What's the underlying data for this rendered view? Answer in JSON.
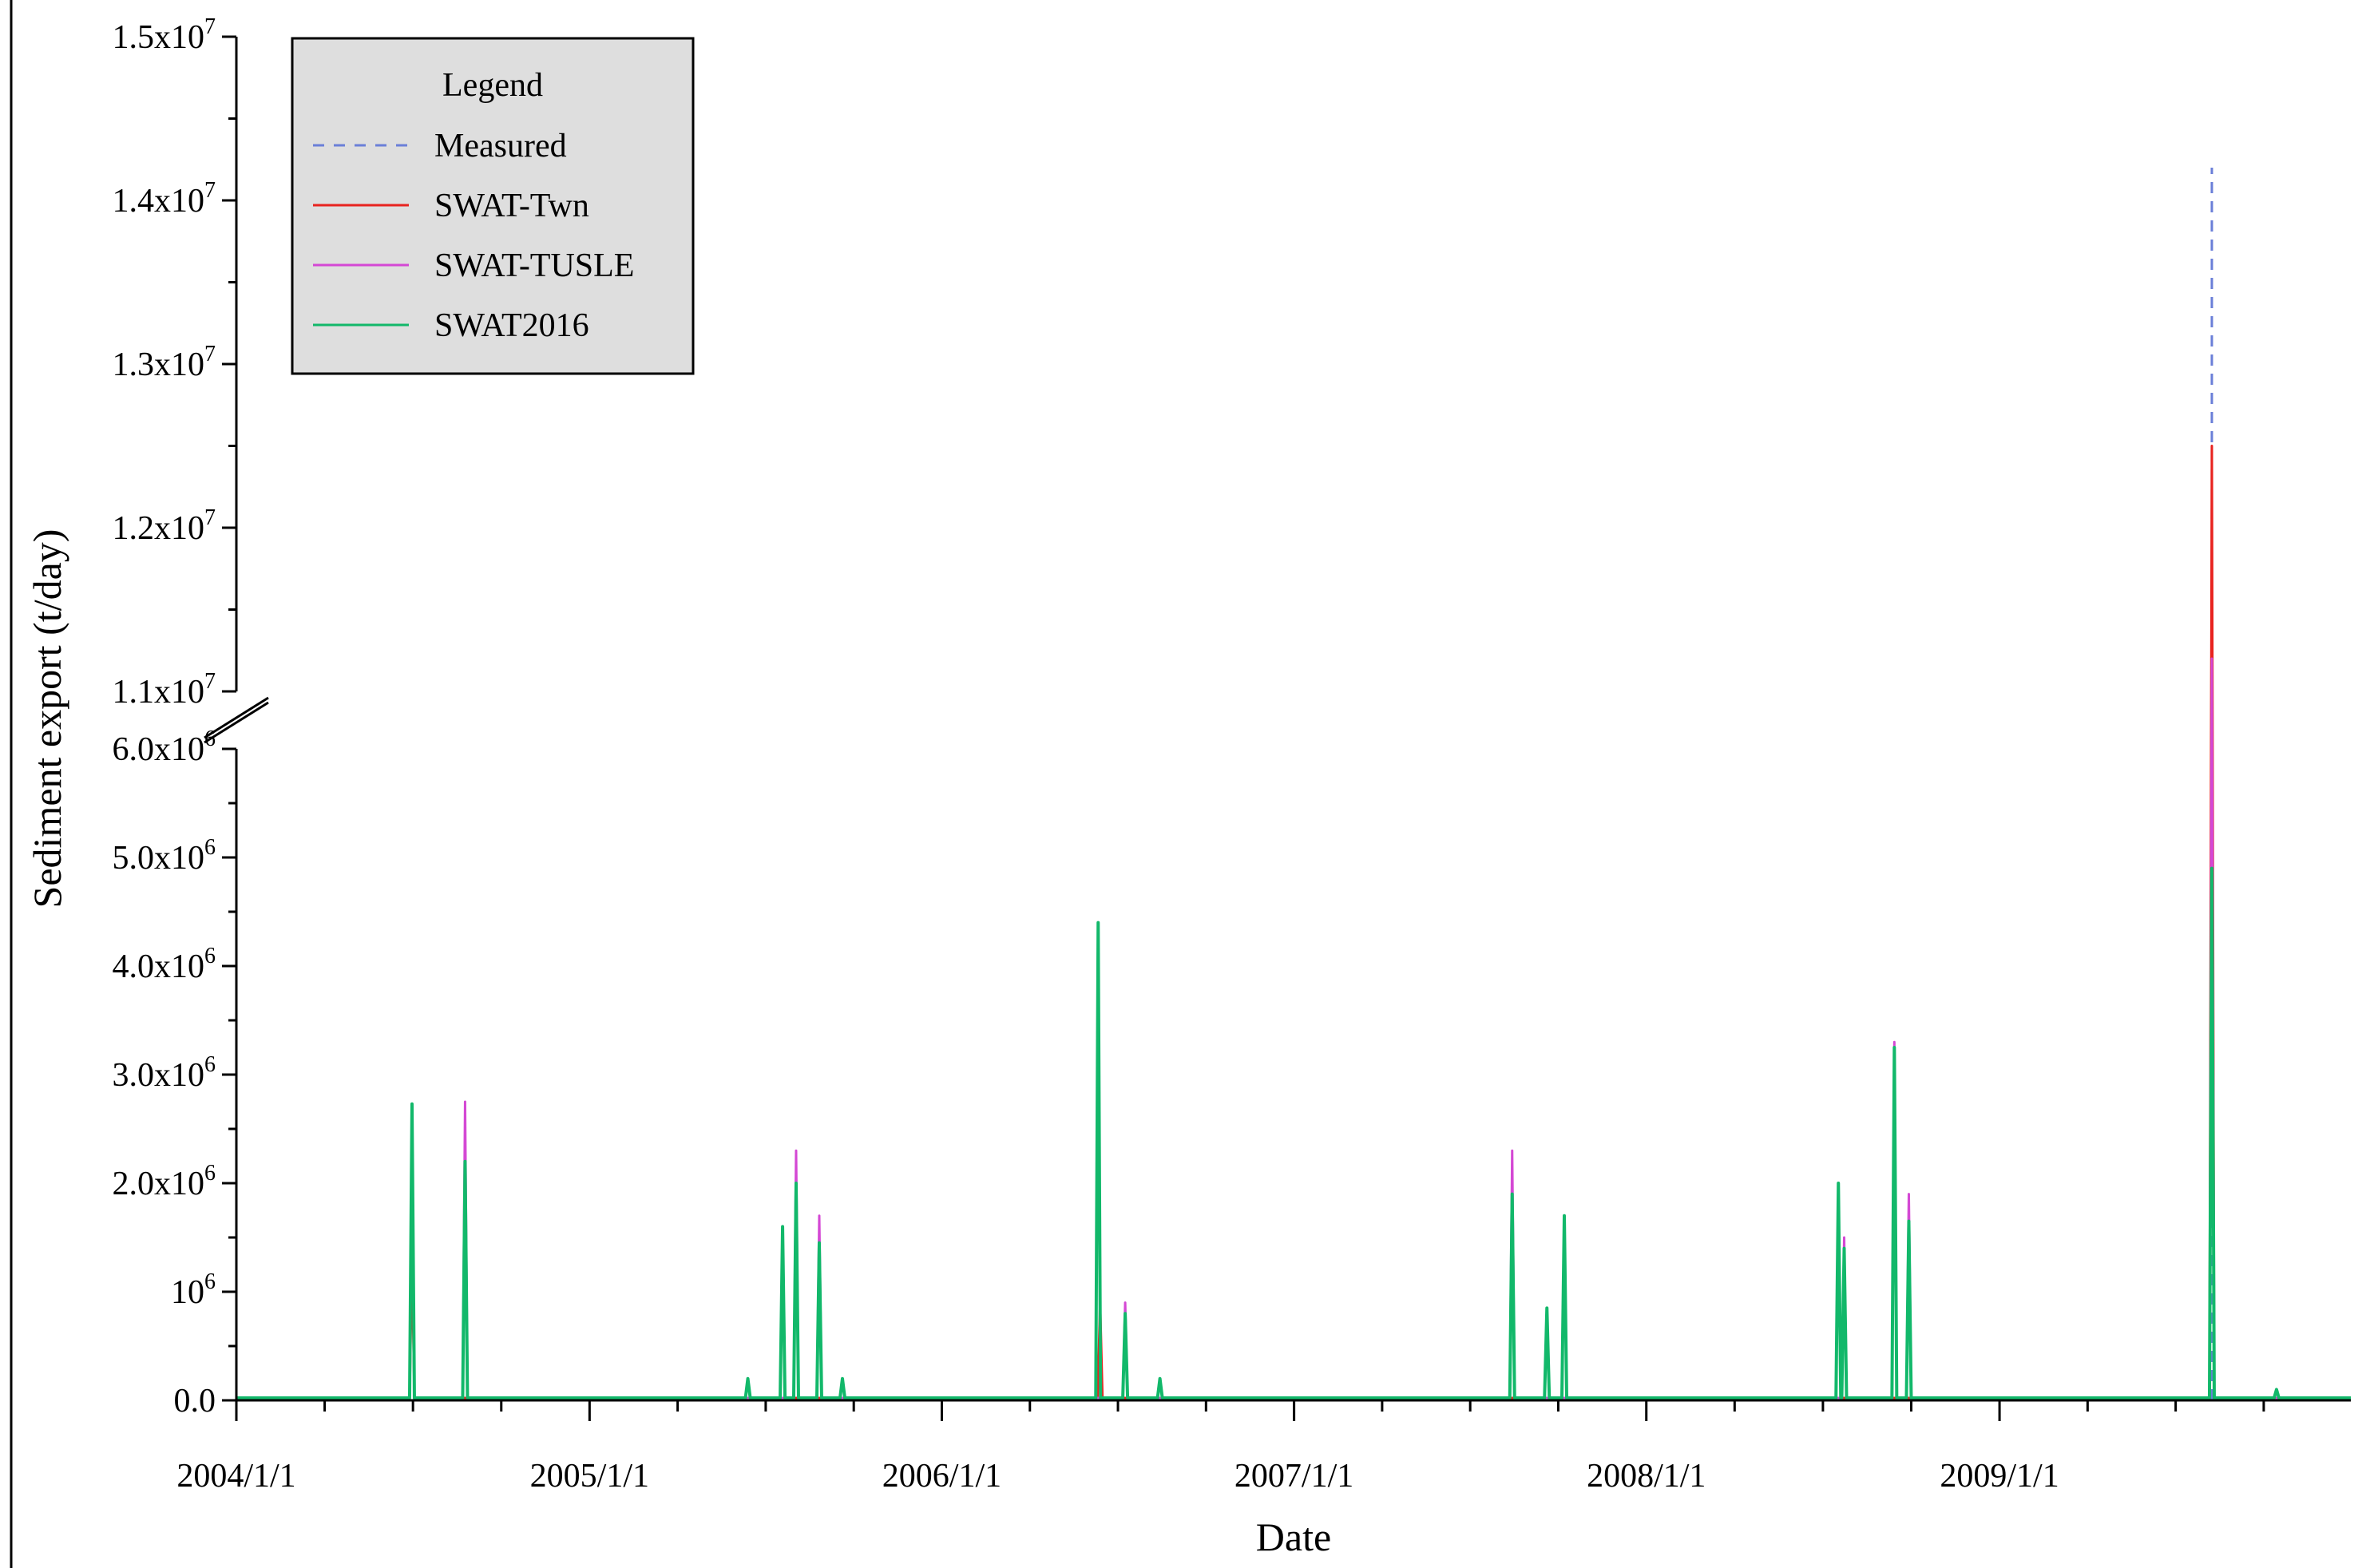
{
  "chart_data": {
    "type": "line",
    "xlabel": "Date",
    "ylabel": "Sediment export (t/day)",
    "x_ticks": [
      "2004/1/1",
      "2005/1/1",
      "2006/1/1",
      "2007/1/1",
      "2008/1/1",
      "2009/1/1"
    ],
    "x_tick_days": [
      0,
      366,
      731,
      1096,
      1461,
      1827
    ],
    "x_range_days": [
      0,
      2191
    ],
    "y_axis": {
      "broken": true,
      "lower_range": [
        0,
        6000000
      ],
      "upper_range": [
        11000000,
        15000000
      ],
      "lower_ticks": [
        {
          "value": 0,
          "base": "0.0",
          "exp": ""
        },
        {
          "value": 1000000,
          "base": "10",
          "exp": "6"
        },
        {
          "value": 2000000,
          "base": "2.0x10",
          "exp": "6"
        },
        {
          "value": 3000000,
          "base": "3.0x10",
          "exp": "6"
        },
        {
          "value": 4000000,
          "base": "4.0x10",
          "exp": "6"
        },
        {
          "value": 5000000,
          "base": "5.0x10",
          "exp": "6"
        },
        {
          "value": 6000000,
          "base": "6.0x10",
          "exp": "6"
        }
      ],
      "upper_ticks": [
        {
          "value": 11000000,
          "base": "1.1x10",
          "exp": "7"
        },
        {
          "value": 12000000,
          "base": "1.2x10",
          "exp": "7"
        },
        {
          "value": 13000000,
          "base": "1.3x10",
          "exp": "7"
        },
        {
          "value": 14000000,
          "base": "1.4x10",
          "exp": "7"
        },
        {
          "value": 15000000,
          "base": "1.5x10",
          "exp": "7"
        }
      ]
    },
    "legend": {
      "title": "Legend",
      "placement": "top-left",
      "entries": [
        {
          "name": "Measured",
          "color": "#6a7fd8",
          "dash": true
        },
        {
          "name": "SWAT-Twn",
          "color": "#e8231f",
          "dash": false
        },
        {
          "name": "SWAT-TUSLE",
          "color": "#d448d4",
          "dash": false
        },
        {
          "name": "SWAT2016",
          "color": "#12b86a",
          "dash": false
        }
      ]
    },
    "series": [
      {
        "name": "Measured",
        "peaks": [
          {
            "date": "2009-08-09",
            "day": 2047,
            "value": 14200000
          }
        ]
      },
      {
        "name": "SWAT-Twn",
        "peaks": [
          {
            "date": "2004-07-01",
            "day": 182,
            "value": 1300000
          },
          {
            "date": "2006-06-14",
            "day": 895,
            "value": 900000
          },
          {
            "date": "2009-08-09",
            "day": 2047,
            "value": 12500000
          }
        ]
      },
      {
        "name": "SWAT-TUSLE",
        "peaks": [
          {
            "date": "2004-07-01",
            "day": 182,
            "value": 2700000
          },
          {
            "date": "2004-08-25",
            "day": 237,
            "value": 2750000
          },
          {
            "date": "2005-08-03",
            "day": 580,
            "value": 2300000
          },
          {
            "date": "2005-08-27",
            "day": 604,
            "value": 1700000
          },
          {
            "date": "2006-07-10",
            "day": 921,
            "value": 900000
          },
          {
            "date": "2007-08-15",
            "day": 1322,
            "value": 2300000
          },
          {
            "date": "2008-07-24",
            "day": 1666,
            "value": 1500000
          },
          {
            "date": "2008-09-14",
            "day": 1718,
            "value": 3300000
          },
          {
            "date": "2008-09-29",
            "day": 1733,
            "value": 1900000
          },
          {
            "date": "2009-08-09",
            "day": 2047,
            "value": 11200000
          }
        ]
      },
      {
        "name": "SWAT2016",
        "peaks": [
          {
            "date": "2004-07-01",
            "day": 182,
            "value": 2730000
          },
          {
            "date": "2004-08-25",
            "day": 237,
            "value": 2200000
          },
          {
            "date": "2005-06-14",
            "day": 530,
            "value": 200000
          },
          {
            "date": "2005-07-20",
            "day": 566,
            "value": 1600000
          },
          {
            "date": "2005-08-03",
            "day": 580,
            "value": 2000000
          },
          {
            "date": "2005-08-27",
            "day": 604,
            "value": 1450000
          },
          {
            "date": "2005-09-20",
            "day": 628,
            "value": 200000
          },
          {
            "date": "2006-06-12",
            "day": 893,
            "value": 4400000
          },
          {
            "date": "2006-07-10",
            "day": 921,
            "value": 800000
          },
          {
            "date": "2006-08-15",
            "day": 957,
            "value": 200000
          },
          {
            "date": "2007-08-15",
            "day": 1322,
            "value": 1900000
          },
          {
            "date": "2007-09-20",
            "day": 1358,
            "value": 850000
          },
          {
            "date": "2007-10-08",
            "day": 1376,
            "value": 1700000
          },
          {
            "date": "2008-07-18",
            "day": 1660,
            "value": 2000000
          },
          {
            "date": "2008-07-24",
            "day": 1666,
            "value": 1400000
          },
          {
            "date": "2008-09-14",
            "day": 1718,
            "value": 3250000
          },
          {
            "date": "2008-09-29",
            "day": 1733,
            "value": 1650000
          },
          {
            "date": "2009-08-09",
            "day": 2047,
            "value": 4900000
          },
          {
            "date": "2009-10-15",
            "day": 2114,
            "value": 100000
          }
        ]
      }
    ]
  }
}
